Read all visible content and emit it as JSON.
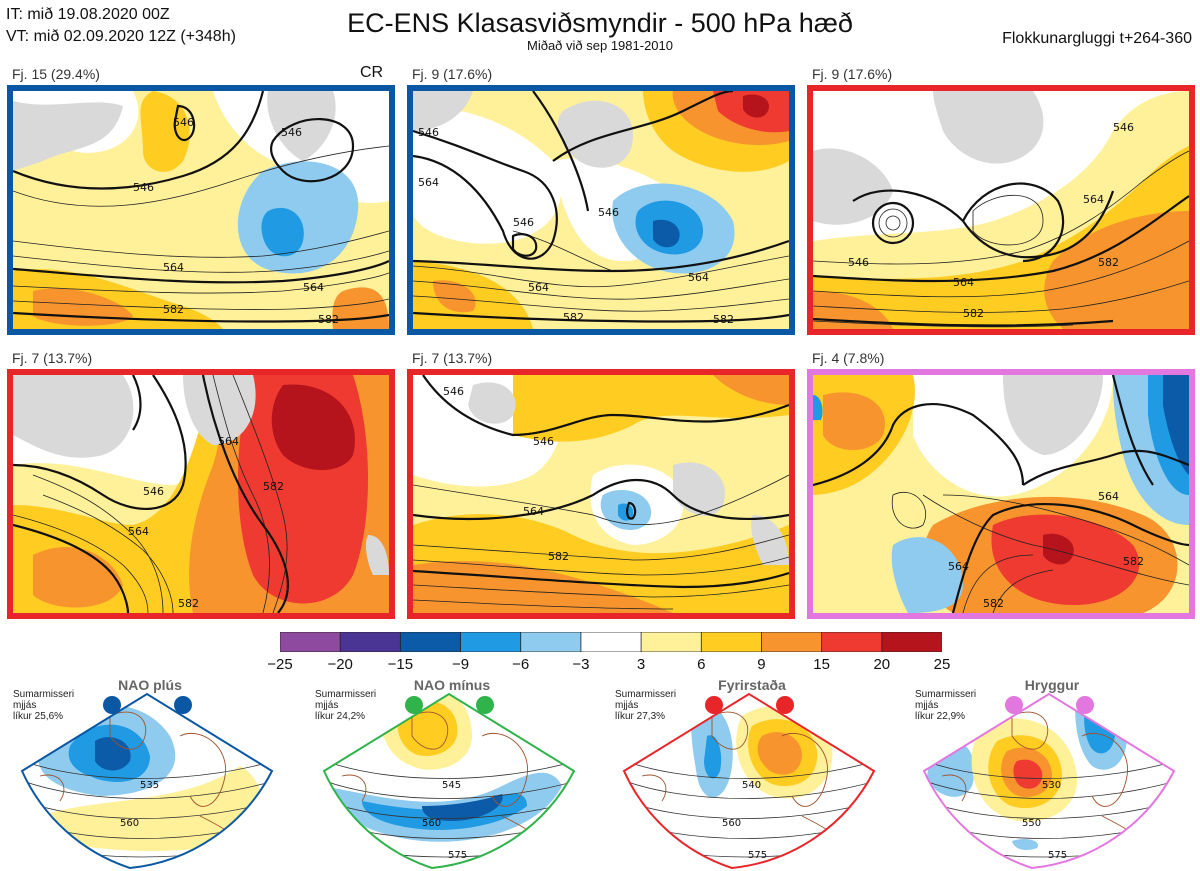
{
  "header": {
    "it": "IT: mið 19.08.2020 00Z",
    "vt": "VT: mið 02.09.2020 12Z  (+348h)",
    "title": "EC-ENS Klasasviðsmyndir - 500 hPa hæð",
    "subtitle": "Miðað við sep 1981-2010",
    "window": "Flokkunargluggi t+264-360"
  },
  "panels": [
    {
      "caption": "Fj. 15 (29.4%)",
      "border": "#0a57a4",
      "tag": "CR",
      "labels": [
        "546",
        "546",
        "546",
        "564",
        "564",
        "582",
        "582"
      ]
    },
    {
      "caption": "Fj. 9 (17.6%)",
      "border": "#0a57a4",
      "labels": [
        "546",
        "546",
        "546",
        "564",
        "564",
        "582",
        "582",
        "564"
      ]
    },
    {
      "caption": "Fj. 9 (17.6%)",
      "border": "#e8262a",
      "labels": [
        "546",
        "546",
        "564",
        "564",
        "582",
        "582"
      ]
    },
    {
      "caption": "Fj. 7 (13.7%)",
      "border": "#e8262a",
      "labels": [
        "546",
        "564",
        "564",
        "582",
        "582"
      ]
    },
    {
      "caption": "Fj. 7 (13.7%)",
      "border": "#e8262a",
      "labels": [
        "546",
        "564",
        "582",
        "546"
      ]
    },
    {
      "caption": "Fj. 4 (7.8%)",
      "border": "#e277e0",
      "labels": [
        "564",
        "564",
        "582",
        "582"
      ]
    }
  ],
  "colorbar": {
    "ticks": [
      "−25",
      "−20",
      "−15",
      "−9",
      "−6",
      "−3",
      "3",
      "6",
      "9",
      "15",
      "20",
      "25"
    ],
    "colors": [
      "#8e4a9e",
      "#4a3595",
      "#0c5ba8",
      "#1f9ae3",
      "#8fcbee",
      "#ffffff",
      "#fff19a",
      "#ffcc22",
      "#f7942e",
      "#ee3a30",
      "#b5141d"
    ]
  },
  "regimes": [
    {
      "name": "NAO plús",
      "season": "Sumarmisseri",
      "mean": "mjjás",
      "prob": "líkur 25,6%",
      "color": "#0a57a4",
      "labels": [
        "535",
        "560"
      ]
    },
    {
      "name": "NAO mínus",
      "season": "Sumarmisseri",
      "mean": "mjjás",
      "prob": "líkur 24,2%",
      "color": "#2fb34a",
      "labels": [
        "545",
        "560",
        "575"
      ]
    },
    {
      "name": "Fyrirstaða",
      "season": "Sumarmisseri",
      "mean": "mjjás",
      "prob": "líkur 27,3%",
      "color": "#e8262a",
      "labels": [
        "540",
        "560",
        "575"
      ]
    },
    {
      "name": "Hryggur",
      "season": "Sumarmisseri",
      "mean": "mjjás",
      "prob": "líkur 22,9%",
      "color": "#e277e0",
      "labels": [
        "530",
        "550",
        "575"
      ]
    }
  ]
}
